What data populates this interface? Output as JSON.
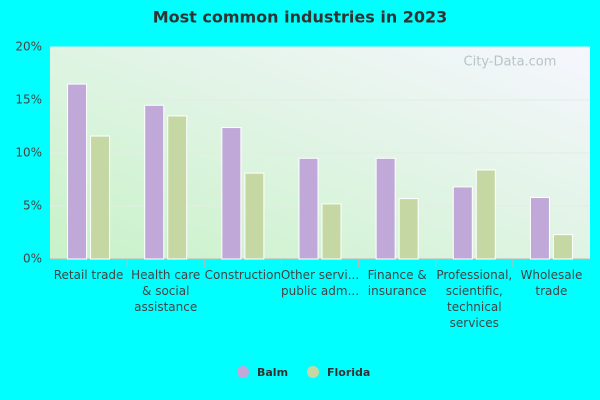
{
  "chart_data": {
    "type": "bar",
    "title": "Most common industries in 2023",
    "watermark": "City-Data.com",
    "categories": [
      "Retail trade",
      "Health care\n& social\nassistance",
      "Construction",
      "Other servi...\npublic adm...",
      "Finance &\ninsurance",
      "Professional,\nscientific,\ntechnical\nservices",
      "Wholesale\ntrade"
    ],
    "series": [
      {
        "name": "Balm",
        "color": "#c0a8d8",
        "values": [
          16.5,
          14.5,
          12.4,
          9.5,
          9.5,
          6.8,
          5.8
        ]
      },
      {
        "name": "Florida",
        "color": "#c5d8a4",
        "values": [
          11.6,
          13.5,
          8.1,
          5.2,
          5.7,
          8.4,
          2.3
        ]
      }
    ],
    "ylim": [
      0,
      20
    ],
    "yticks": [
      {
        "value": 0,
        "label": "0%"
      },
      {
        "value": 5,
        "label": "5%"
      },
      {
        "value": 10,
        "label": "10%"
      },
      {
        "value": 15,
        "label": "15%"
      },
      {
        "value": 20,
        "label": "20%"
      }
    ],
    "grid": true
  }
}
